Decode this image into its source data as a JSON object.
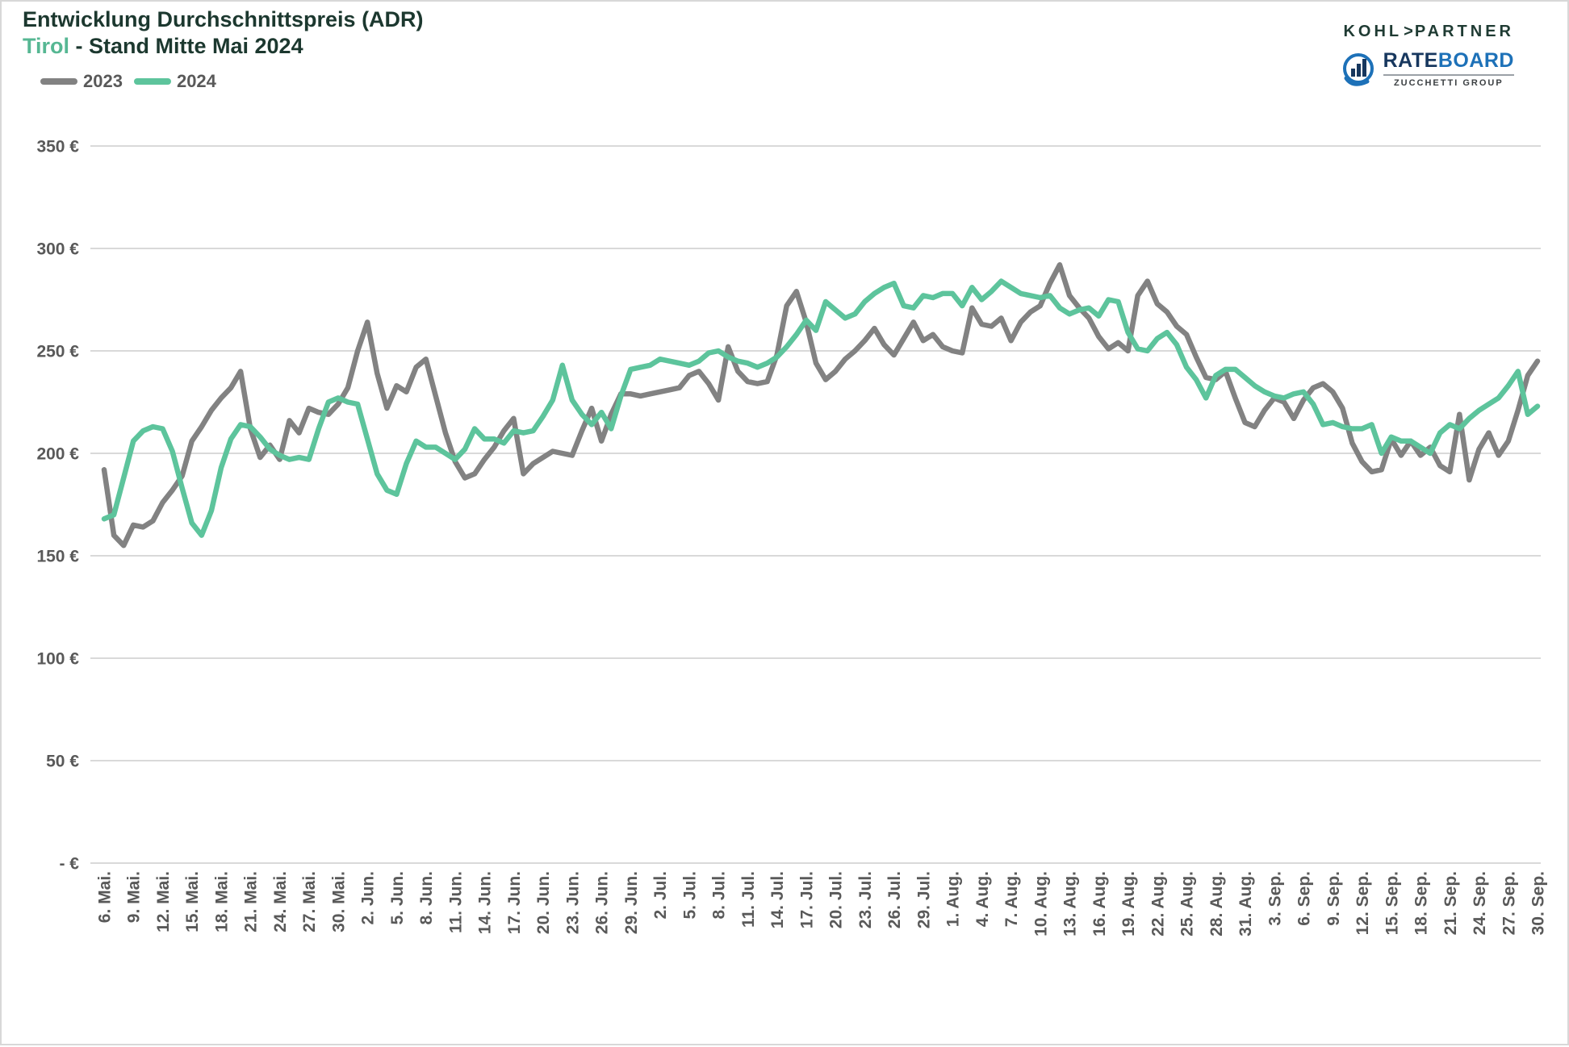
{
  "title": {
    "line1": "Entwicklung Durchschnittspreis (ADR)",
    "highlight": "Tirol",
    "line2_rest": " - Stand Mitte Mai 2024"
  },
  "branding": {
    "kohl_partner": {
      "left": "KOHL",
      "arrow": ">",
      "right": "PARTNER"
    },
    "rateboard": {
      "rate": "RATE",
      "board": "BOARD",
      "subtitle": "ZUCCHETTI GROUP",
      "icon": "rateboard-bars-swirl-icon"
    },
    "colors": {
      "kohl": "#1f3b33",
      "rate": "#17375e",
      "board": "#1d71b8",
      "icon_blue": "#1d71b8",
      "icon_navy": "#17375e"
    }
  },
  "legend": {
    "items": [
      {
        "label": "2023",
        "color": "#828282"
      },
      {
        "label": "2024",
        "color": "#5dc49c"
      }
    ]
  },
  "chart_data": {
    "type": "line",
    "title": "Entwicklung Durchschnittspreis (ADR)",
    "subtitle": "Tirol - Stand Mitte Mai 2024",
    "xlabel": "",
    "ylabel": "",
    "ylim": [
      0,
      350
    ],
    "grid": true,
    "legend_position": "top-left",
    "y_ticks": [
      {
        "value": 0,
        "label": "-  €"
      },
      {
        "value": 50,
        "label": "50 €"
      },
      {
        "value": 100,
        "label": "100 €"
      },
      {
        "value": 150,
        "label": "150 €"
      },
      {
        "value": 200,
        "label": "200 €"
      },
      {
        "value": 250,
        "label": "250 €"
      },
      {
        "value": 300,
        "label": "300 €"
      },
      {
        "value": 350,
        "label": "350 €"
      }
    ],
    "x_tick_every_days": 3,
    "x_tick_labels": [
      "6. Mai.",
      "9. Mai.",
      "12. Mai.",
      "15. Mai.",
      "18. Mai.",
      "21. Mai.",
      "24. Mai.",
      "27. Mai.",
      "30. Mai.",
      "2. Jun.",
      "5. Jun.",
      "8. Jun.",
      "11. Jun.",
      "14. Jun.",
      "17. Jun.",
      "20. Jun.",
      "23. Jun.",
      "26. Jun.",
      "29. Jun.",
      "2. Jul.",
      "5. Jul.",
      "8. Jul.",
      "11. Jul.",
      "14. Jul.",
      "17. Jul.",
      "20. Jul.",
      "23. Jul.",
      "26. Jul.",
      "29. Jul.",
      "1. Aug.",
      "4. Aug.",
      "7. Aug.",
      "10. Aug.",
      "13. Aug.",
      "16. Aug.",
      "19. Aug.",
      "22. Aug.",
      "25. Aug.",
      "28. Aug.",
      "31. Aug.",
      "3. Sep.",
      "6. Sep.",
      "9. Sep.",
      "12. Sep.",
      "15. Sep.",
      "18. Sep.",
      "21. Sep.",
      "24. Sep.",
      "27. Sep.",
      "30. Sep."
    ],
    "series": [
      {
        "name": "2023",
        "color": "#828282",
        "values": [
          192,
          160,
          155,
          165,
          164,
          167,
          176,
          182,
          189,
          206,
          213,
          221,
          227,
          232,
          240,
          212,
          198,
          204,
          197,
          216,
          210,
          222,
          220,
          219,
          224,
          232,
          250,
          264,
          239,
          222,
          233,
          230,
          242,
          246,
          228,
          210,
          196,
          188,
          190,
          197,
          203,
          211,
          217,
          190,
          195,
          198,
          201,
          200,
          199,
          211,
          222,
          206,
          219,
          229,
          229,
          228,
          229,
          230,
          231,
          232,
          238,
          240,
          234,
          226,
          252,
          240,
          235,
          234,
          235,
          248,
          272,
          279,
          264,
          244,
          236,
          240,
          246,
          250,
          255,
          261,
          253,
          248,
          256,
          264,
          255,
          258,
          252,
          250,
          249,
          271,
          263,
          262,
          266,
          255,
          264,
          269,
          272,
          283,
          292,
          277,
          271,
          266,
          257,
          251,
          254,
          250,
          277,
          284,
          273,
          269,
          262,
          258,
          247,
          237,
          236,
          240,
          227,
          215,
          213,
          221,
          227,
          225,
          217,
          226,
          232,
          234,
          230,
          222,
          205,
          196,
          191,
          192,
          207,
          199,
          206,
          199,
          203,
          194,
          191,
          219,
          187,
          202,
          210,
          199,
          206,
          221,
          238,
          245
        ]
      },
      {
        "name": "2024",
        "color": "#5dc49c",
        "values": [
          168,
          170,
          188,
          206,
          211,
          213,
          212,
          201,
          183,
          166,
          160,
          172,
          193,
          207,
          214,
          213,
          208,
          202,
          199,
          197,
          198,
          197,
          212,
          225,
          227,
          225,
          224,
          207,
          190,
          182,
          180,
          195,
          206,
          203,
          203,
          200,
          197,
          202,
          212,
          207,
          207,
          205,
          211,
          210,
          211,
          218,
          226,
          243,
          226,
          219,
          214,
          220,
          212,
          228,
          241,
          242,
          243,
          246,
          245,
          244,
          243,
          245,
          249,
          250,
          247,
          245,
          244,
          242,
          244,
          247,
          252,
          258,
          265,
          260,
          274,
          270,
          266,
          268,
          274,
          278,
          281,
          283,
          272,
          271,
          277,
          276,
          278,
          278,
          272,
          281,
          275,
          279,
          284,
          281,
          278,
          277,
          276,
          277,
          271,
          268,
          270,
          271,
          267,
          275,
          274,
          259,
          251,
          250,
          256,
          259,
          253,
          242,
          236,
          227,
          238,
          241,
          241,
          237,
          233,
          230,
          228,
          227,
          229,
          230,
          224,
          214,
          215,
          213,
          212,
          212,
          214,
          200,
          208,
          206,
          206,
          203,
          200,
          210,
          214,
          212,
          217,
          221,
          224,
          227,
          233,
          240,
          219,
          223
        ]
      }
    ]
  }
}
